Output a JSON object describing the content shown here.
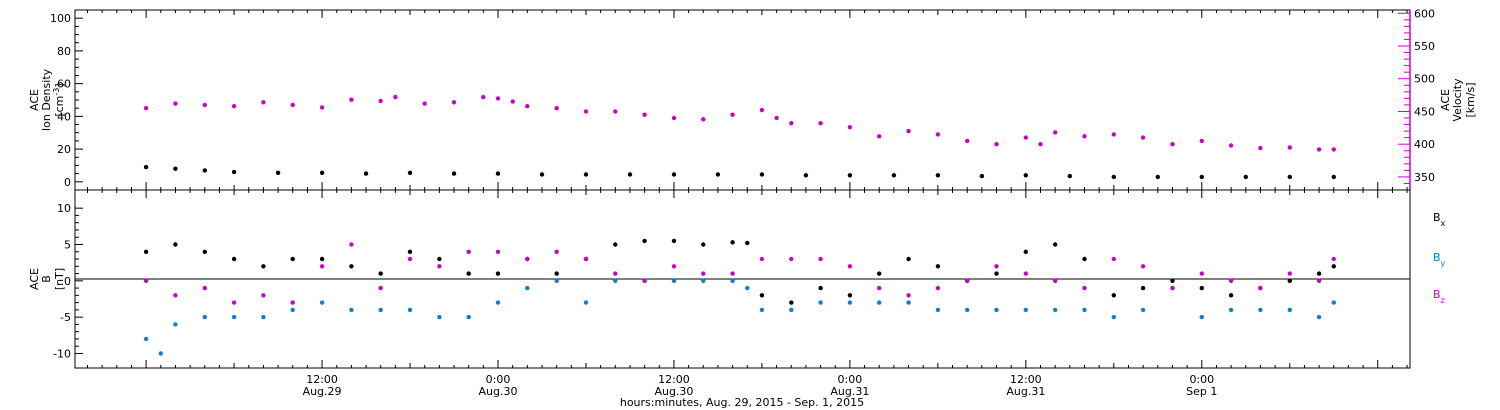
{
  "colors": {
    "density": "#000000",
    "velocity": "#cc00cc",
    "bx": "#000000",
    "by": "#0a7fd6",
    "bz": "#cc00cc",
    "axis": "#000000",
    "velocity_axis": "#cc00cc"
  },
  "chart_data": [
    {
      "type": "scatter",
      "panel": "top",
      "ylabel_lines": [
        "ACE",
        "Ion Density"
      ],
      "yunit_base": "[cm",
      "yunit_sup": "-3",
      "yunit_tail": "]",
      "ylim": [
        -5,
        105
      ],
      "yticks": [
        0,
        20,
        40,
        60,
        80,
        100
      ],
      "y2label_lines": [
        "ACE",
        "Velocity",
        "[km/s]"
      ],
      "y2lim": [
        330,
        605
      ],
      "y2ticks": [
        350,
        400,
        450,
        500,
        550,
        600
      ],
      "series": [
        {
          "key": "density",
          "points": [
            [
              0,
              9
            ],
            [
              2,
              8
            ],
            [
              4,
              7
            ],
            [
              6,
              6
            ],
            [
              9,
              5.5
            ],
            [
              12,
              5.5
            ],
            [
              15,
              5
            ],
            [
              18,
              5.5
            ],
            [
              21,
              5
            ],
            [
              24,
              5
            ],
            [
              27,
              4.5
            ],
            [
              30,
              4.5
            ],
            [
              33,
              4.5
            ],
            [
              36,
              4.5
            ],
            [
              39,
              4.5
            ],
            [
              42,
              4.5
            ],
            [
              45,
              4
            ],
            [
              48,
              4
            ],
            [
              51,
              4
            ],
            [
              54,
              4
            ],
            [
              57,
              3.5
            ],
            [
              60,
              4
            ],
            [
              63,
              3.5
            ],
            [
              66,
              3
            ],
            [
              69,
              3
            ],
            [
              72,
              3
            ],
            [
              75,
              3
            ],
            [
              78,
              3
            ],
            [
              81,
              3
            ]
          ]
        },
        {
          "key": "velocity",
          "points": [
            [
              0,
              455
            ],
            [
              2,
              462
            ],
            [
              4,
              460
            ],
            [
              6,
              458
            ],
            [
              8,
              464
            ],
            [
              10,
              460
            ],
            [
              12,
              456
            ],
            [
              14,
              468
            ],
            [
              16,
              466
            ],
            [
              17,
              472
            ],
            [
              19,
              462
            ],
            [
              21,
              464
            ],
            [
              23,
              472
            ],
            [
              24,
              470
            ],
            [
              25,
              465
            ],
            [
              26,
              458
            ],
            [
              28,
              455
            ],
            [
              30,
              450
            ],
            [
              32,
              450
            ],
            [
              34,
              445
            ],
            [
              36,
              440
            ],
            [
              38,
              438
            ],
            [
              40,
              445
            ],
            [
              42,
              452
            ],
            [
              43,
              440
            ],
            [
              44,
              432
            ],
            [
              46,
              432
            ],
            [
              48,
              426
            ],
            [
              50,
              412
            ],
            [
              52,
              420
            ],
            [
              54,
              415
            ],
            [
              56,
              405
            ],
            [
              58,
              400
            ],
            [
              60,
              410
            ],
            [
              61,
              400
            ],
            [
              62,
              418
            ],
            [
              64,
              412
            ],
            [
              66,
              415
            ],
            [
              68,
              410
            ],
            [
              70,
              400
            ],
            [
              72,
              405
            ],
            [
              74,
              398
            ],
            [
              76,
              394
            ],
            [
              78,
              395
            ],
            [
              80,
              392
            ],
            [
              81,
              392
            ]
          ]
        }
      ]
    },
    {
      "type": "scatter",
      "panel": "bottom",
      "ylabel_lines": [
        "ACE",
        "B",
        "[nT]"
      ],
      "ylim": [
        -12,
        12.5
      ],
      "yticks": [
        -10,
        -5,
        0,
        5,
        10
      ],
      "legend": [
        {
          "key": "bx",
          "base": "B",
          "sub": "x"
        },
        {
          "key": "by",
          "base": "B",
          "sub": "y"
        },
        {
          "key": "bz",
          "base": "B",
          "sub": "z"
        }
      ],
      "series": [
        {
          "key": "bx",
          "points": [
            [
              0,
              4
            ],
            [
              2,
              5
            ],
            [
              4,
              4
            ],
            [
              6,
              3
            ],
            [
              8,
              2
            ],
            [
              10,
              3
            ],
            [
              12,
              3
            ],
            [
              14,
              2
            ],
            [
              16,
              1
            ],
            [
              18,
              4
            ],
            [
              20,
              3
            ],
            [
              22,
              1
            ],
            [
              24,
              1
            ],
            [
              26,
              3
            ],
            [
              28,
              1
            ],
            [
              30,
              3
            ],
            [
              32,
              5
            ],
            [
              34,
              5.5
            ],
            [
              36,
              5.5
            ],
            [
              38,
              5
            ],
            [
              40,
              5.3
            ],
            [
              41,
              5.2
            ],
            [
              42,
              -2
            ],
            [
              44,
              -3
            ],
            [
              46,
              -1
            ],
            [
              48,
              -2
            ],
            [
              50,
              1
            ],
            [
              52,
              3
            ],
            [
              54,
              2
            ],
            [
              56,
              0
            ],
            [
              58,
              1
            ],
            [
              60,
              4
            ],
            [
              62,
              5
            ],
            [
              64,
              3
            ],
            [
              66,
              -2
            ],
            [
              68,
              -1
            ],
            [
              70,
              0
            ],
            [
              72,
              -1
            ],
            [
              74,
              -2
            ],
            [
              76,
              -1
            ],
            [
              78,
              0
            ],
            [
              80,
              1
            ],
            [
              81,
              2
            ]
          ]
        },
        {
          "key": "by",
          "points": [
            [
              0,
              -8
            ],
            [
              1,
              -10
            ],
            [
              2,
              -6
            ],
            [
              4,
              -5
            ],
            [
              6,
              -5
            ],
            [
              8,
              -5
            ],
            [
              10,
              -4
            ],
            [
              12,
              -3
            ],
            [
              14,
              -4
            ],
            [
              16,
              -4
            ],
            [
              18,
              -4
            ],
            [
              20,
              -5
            ],
            [
              22,
              -5
            ],
            [
              24,
              -3
            ],
            [
              26,
              -1
            ],
            [
              28,
              0
            ],
            [
              30,
              -3
            ],
            [
              32,
              0
            ],
            [
              34,
              0
            ],
            [
              36,
              0
            ],
            [
              38,
              0
            ],
            [
              40,
              0
            ],
            [
              41,
              -1
            ],
            [
              42,
              -4
            ],
            [
              44,
              -4
            ],
            [
              46,
              -3
            ],
            [
              48,
              -3
            ],
            [
              50,
              -3
            ],
            [
              52,
              -3
            ],
            [
              54,
              -4
            ],
            [
              56,
              -4
            ],
            [
              58,
              -4
            ],
            [
              60,
              -4
            ],
            [
              62,
              -4
            ],
            [
              64,
              -4
            ],
            [
              66,
              -5
            ],
            [
              68,
              -4
            ],
            [
              70,
              -1
            ],
            [
              72,
              -5
            ],
            [
              74,
              -4
            ],
            [
              76,
              -4
            ],
            [
              78,
              -4
            ],
            [
              80,
              -5
            ],
            [
              81,
              -3
            ]
          ]
        },
        {
          "key": "bz",
          "points": [
            [
              0,
              0
            ],
            [
              2,
              -2
            ],
            [
              4,
              -1
            ],
            [
              6,
              -3
            ],
            [
              8,
              -2
            ],
            [
              10,
              -3
            ],
            [
              12,
              2
            ],
            [
              14,
              5
            ],
            [
              16,
              -1
            ],
            [
              18,
              3
            ],
            [
              20,
              2
            ],
            [
              22,
              4
            ],
            [
              24,
              4
            ],
            [
              26,
              3
            ],
            [
              28,
              4
            ],
            [
              30,
              3
            ],
            [
              32,
              1
            ],
            [
              34,
              0
            ],
            [
              36,
              2
            ],
            [
              38,
              1
            ],
            [
              40,
              1
            ],
            [
              42,
              3
            ],
            [
              44,
              3
            ],
            [
              46,
              3
            ],
            [
              48,
              2
            ],
            [
              50,
              -1
            ],
            [
              52,
              -2
            ],
            [
              54,
              -1
            ],
            [
              56,
              0
            ],
            [
              58,
              2
            ],
            [
              60,
              1
            ],
            [
              62,
              0
            ],
            [
              64,
              -1
            ],
            [
              66,
              3
            ],
            [
              68,
              2
            ],
            [
              70,
              -1
            ],
            [
              72,
              1
            ],
            [
              74,
              0
            ],
            [
              76,
              -1
            ],
            [
              78,
              1
            ],
            [
              80,
              0
            ],
            [
              81,
              3
            ]
          ]
        }
      ]
    }
  ],
  "x_axis": {
    "xlabel": "hours:minutes, Aug. 29, 2015 - Sep.  1, 2015",
    "xlim_hours": [
      -4.85,
      86.2
    ],
    "major_ticks": [
      {
        "hour": 12,
        "line1": "12:00",
        "line2": "Aug.29"
      },
      {
        "hour": 24,
        "line1": "0:00",
        "line2": "Aug.30"
      },
      {
        "hour": 36,
        "line1": "12:00",
        "line2": "Aug.30"
      },
      {
        "hour": 48,
        "line1": "0:00",
        "line2": "Aug.31"
      },
      {
        "hour": 60,
        "line1": "12:00",
        "line2": "Aug.31"
      },
      {
        "hour": 72,
        "line1": "0:00",
        "line2": "Sep 1"
      }
    ]
  }
}
